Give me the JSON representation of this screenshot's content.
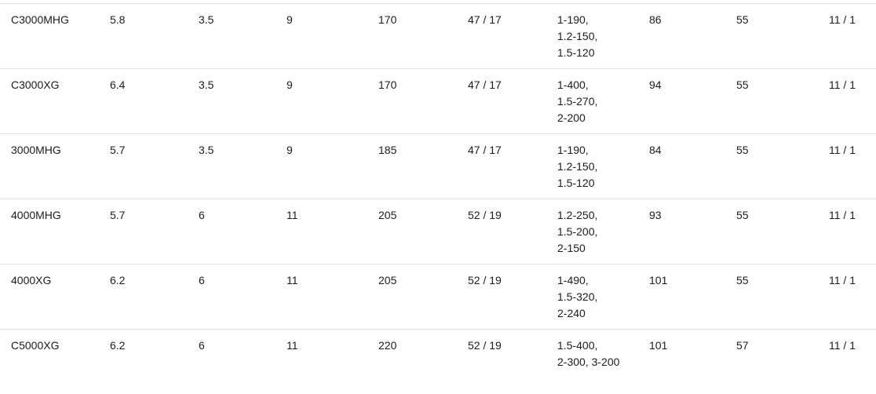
{
  "colors": {
    "background": "#ffffff",
    "row_border": "#e2e2e2",
    "text": "#1c1c1c"
  },
  "table": {
    "rows": [
      {
        "model": "C3000MHG",
        "gear_ratio": "5.8",
        "practical_drag": "3.5",
        "max_drag": "9",
        "weight": "170",
        "spool_dimensions": "47 / 17",
        "line_capacity_lines": [
          "1-190,",
          "1.2-150,",
          "1.5-120"
        ],
        "retrieve_per_crank": "86",
        "handle_length": "55",
        "bearings": "11 / 1"
      },
      {
        "model": "C3000XG",
        "gear_ratio": "6.4",
        "practical_drag": "3.5",
        "max_drag": "9",
        "weight": "170",
        "spool_dimensions": "47 / 17",
        "line_capacity_lines": [
          "1-400,",
          "1.5-270,",
          "2-200"
        ],
        "retrieve_per_crank": "94",
        "handle_length": "55",
        "bearings": "11 / 1"
      },
      {
        "model": "3000MHG",
        "gear_ratio": "5.7",
        "practical_drag": "3.5",
        "max_drag": "9",
        "weight": "185",
        "spool_dimensions": "47 / 17",
        "line_capacity_lines": [
          "1-190,",
          "1.2-150,",
          "1.5-120"
        ],
        "retrieve_per_crank": "84",
        "handle_length": "55",
        "bearings": "11 / 1"
      },
      {
        "model": "4000MHG",
        "gear_ratio": "5.7",
        "practical_drag": "6",
        "max_drag": "11",
        "weight": "205",
        "spool_dimensions": "52 / 19",
        "line_capacity_lines": [
          "1.2-250,",
          "1.5-200,",
          "2-150"
        ],
        "retrieve_per_crank": "93",
        "handle_length": "55",
        "bearings": "11 / 1"
      },
      {
        "model": "4000XG",
        "gear_ratio": "6.2",
        "practical_drag": "6",
        "max_drag": "11",
        "weight": "205",
        "spool_dimensions": "52 / 19",
        "line_capacity_lines": [
          "1-490,",
          "1.5-320,",
          "2-240"
        ],
        "retrieve_per_crank": "101",
        "handle_length": "55",
        "bearings": "11 / 1"
      },
      {
        "model": "C5000XG",
        "gear_ratio": "6.2",
        "practical_drag": "6",
        "max_drag": "11",
        "weight": "220",
        "spool_dimensions": "52 / 19",
        "line_capacity_lines": [
          "1.5-400,",
          "2-300, 3-200"
        ],
        "retrieve_per_crank": "101",
        "handle_length": "57",
        "bearings": "11 / 1"
      }
    ]
  }
}
